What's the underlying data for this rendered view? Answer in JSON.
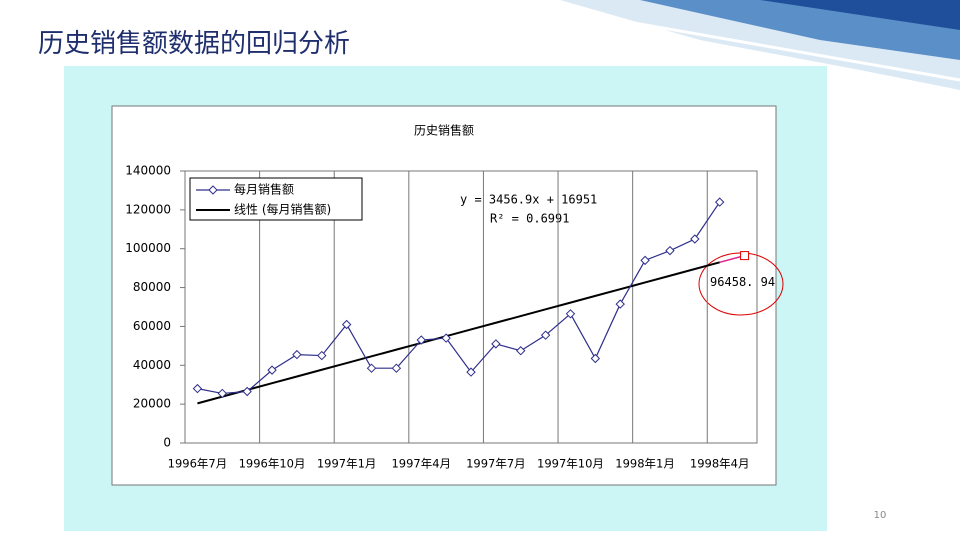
{
  "slide_title": "历史销售额数据的回归分析",
  "page_number": "10",
  "chart_data": {
    "type": "line",
    "title": "历史销售额",
    "categories": [
      "1996年7月",
      null,
      null,
      "1996年10月",
      null,
      null,
      "1997年1月",
      null,
      null,
      "1997年4月",
      null,
      null,
      "1997年7月",
      null,
      null,
      "1997年10月",
      null,
      null,
      "1998年1月",
      null,
      null,
      "1998年4月",
      null
    ],
    "series": [
      {
        "name": "每月销售额",
        "color": "#2e2e8c",
        "marker": "diamond",
        "values": [
          28000,
          25500,
          26500,
          37500,
          45500,
          45000,
          61000,
          38500,
          38500,
          53000,
          54000,
          36500,
          51000,
          47500,
          55500,
          66500,
          43500,
          71500,
          94000,
          99000,
          105000,
          124000,
          null
        ]
      },
      {
        "name": "线性 (每月销售额)",
        "color": "#000000",
        "marker": "none",
        "values": [
          20408,
          23865,
          27322,
          30778,
          34235,
          37692,
          41149,
          44606,
          48063,
          51520,
          54977,
          58434,
          61891,
          65348,
          68805,
          72262,
          75718,
          79175,
          82632,
          86089,
          89546,
          93003,
          null
        ]
      }
    ],
    "forecast": {
      "color": "#e0218a",
      "marker_color": "#e00000",
      "values": [
        null,
        null,
        null,
        null,
        null,
        null,
        null,
        null,
        null,
        null,
        null,
        null,
        null,
        null,
        null,
        null,
        null,
        null,
        null,
        null,
        null,
        93003,
        96458.94
      ],
      "value_labels": [
        null,
        null,
        null,
        null,
        null,
        null,
        null,
        null,
        null,
        null,
        null,
        null,
        null,
        null,
        null,
        null,
        null,
        null,
        null,
        null,
        null,
        null,
        "96458. 94"
      ]
    },
    "annotations": [
      "y = 3456.9x + 16951",
      "R² = 0.6991"
    ],
    "ylim": [
      0,
      140000
    ],
    "yticks": [
      0,
      20000,
      40000,
      60000,
      80000,
      100000,
      120000,
      140000
    ],
    "grid": "x",
    "legend": "upper-left"
  }
}
